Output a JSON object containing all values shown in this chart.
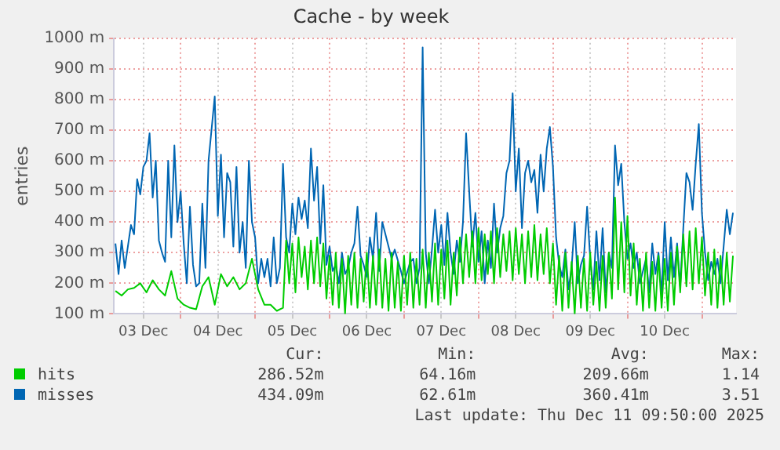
{
  "chart_data": {
    "type": "line",
    "title": "Cache - by week",
    "ylabel": "entries",
    "xlim": [
      "2025-12-03T02:30",
      "2025-12-11T11:00"
    ],
    "xticks": [
      {
        "value": "2025-12-03T12:00",
        "label": "03 Dec"
      },
      {
        "value": "2025-12-04T00:00",
        "label": null
      },
      {
        "value": "2025-12-04T12:00",
        "label": "04 Dec"
      },
      {
        "value": "2025-12-05T00:00",
        "label": null
      },
      {
        "value": "2025-12-05T12:00",
        "label": "05 Dec"
      },
      {
        "value": "2025-12-06T00:00",
        "label": null
      },
      {
        "value": "2025-12-06T12:00",
        "label": "06 Dec"
      },
      {
        "value": "2025-12-07T00:00",
        "label": null
      },
      {
        "value": "2025-12-07T12:00",
        "label": "07 Dec"
      },
      {
        "value": "2025-12-08T00:00",
        "label": null
      },
      {
        "value": "2025-12-08T12:00",
        "label": "08 Dec"
      },
      {
        "value": "2025-12-09T00:00",
        "label": null
      },
      {
        "value": "2025-12-09T12:00",
        "label": "09 Dec"
      },
      {
        "value": "2025-12-10T00:00",
        "label": null
      },
      {
        "value": "2025-12-10T12:00",
        "label": "10 Dec"
      },
      {
        "value": "2025-12-11T00:00",
        "label": null
      }
    ],
    "ylim": [
      100,
      1000
    ],
    "yticks": [
      {
        "value": 100,
        "label": "100 m"
      },
      {
        "value": 200,
        "label": "200 m"
      },
      {
        "value": 300,
        "label": "300 m"
      },
      {
        "value": 400,
        "label": "400 m"
      },
      {
        "value": 500,
        "label": "500 m"
      },
      {
        "value": 600,
        "label": "600 m"
      },
      {
        "value": 700,
        "label": "700 m"
      },
      {
        "value": 800,
        "label": "800 m"
      },
      {
        "value": 900,
        "label": "900 m"
      },
      {
        "value": 1000,
        "label": "1000 m"
      }
    ],
    "grid": true,
    "legend": "bottom",
    "line_style": "solid",
    "annotations": [
      "Cur:",
      "Min:",
      "Avg:",
      "Max:",
      "286.52m",
      "64.16m",
      "209.66m",
      "1.14",
      "434.09m",
      "62.61m",
      "360.41m",
      "3.51",
      "Last update: Thu Dec 11 09:50:00 2025"
    ],
    "series": [
      {
        "name": "hits",
        "color": "#00cc00",
        "x": [
          "2025-12-03T03:00",
          "2025-12-03T05:00",
          "2025-12-03T07:00",
          "2025-12-03T09:00",
          "2025-12-03T11:00",
          "2025-12-03T13:00",
          "2025-12-03T15:00",
          "2025-12-03T17:00",
          "2025-12-03T19:00",
          "2025-12-03T21:00",
          "2025-12-03T23:00",
          "2025-12-04T01:00",
          "2025-12-04T03:00",
          "2025-12-04T05:00",
          "2025-12-04T07:00",
          "2025-12-04T09:00",
          "2025-12-04T11:00",
          "2025-12-04T13:00",
          "2025-12-04T15:00",
          "2025-12-04T17:00",
          "2025-12-04T19:00",
          "2025-12-04T21:00",
          "2025-12-04T23:00",
          "2025-12-05T01:00",
          "2025-12-05T03:00",
          "2025-12-05T05:00",
          "2025-12-05T07:00",
          "2025-12-05T09:00",
          "2025-12-05T10:00",
          "2025-12-05T11:00",
          "2025-12-05T12:00",
          "2025-12-05T13:00",
          "2025-12-05T14:00",
          "2025-12-05T15:00",
          "2025-12-05T16:00",
          "2025-12-05T17:00",
          "2025-12-05T18:00",
          "2025-12-05T19:00",
          "2025-12-05T20:00",
          "2025-12-05T21:00",
          "2025-12-05T22:00",
          "2025-12-05T23:00",
          "2025-12-06T00:00",
          "2025-12-06T01:00",
          "2025-12-06T02:00",
          "2025-12-06T03:00",
          "2025-12-06T04:00",
          "2025-12-06T05:00",
          "2025-12-06T06:00",
          "2025-12-06T07:00",
          "2025-12-06T08:00",
          "2025-12-06T09:00",
          "2025-12-06T10:00",
          "2025-12-06T11:00",
          "2025-12-06T12:00",
          "2025-12-06T13:00",
          "2025-12-06T14:00",
          "2025-12-06T15:00",
          "2025-12-06T16:00",
          "2025-12-06T17:00",
          "2025-12-06T18:00",
          "2025-12-06T19:00",
          "2025-12-06T20:00",
          "2025-12-06T21:00",
          "2025-12-06T22:00",
          "2025-12-06T23:00",
          "2025-12-07T00:00",
          "2025-12-07T01:00",
          "2025-12-07T02:00",
          "2025-12-07T03:00",
          "2025-12-07T04:00",
          "2025-12-07T05:00",
          "2025-12-07T06:00",
          "2025-12-07T07:00",
          "2025-12-07T08:00",
          "2025-12-07T09:00",
          "2025-12-07T10:00",
          "2025-12-07T11:00",
          "2025-12-07T12:00",
          "2025-12-07T13:00",
          "2025-12-07T14:00",
          "2025-12-07T15:00",
          "2025-12-07T16:00",
          "2025-12-07T17:00",
          "2025-12-07T18:00",
          "2025-12-07T19:00",
          "2025-12-07T20:00",
          "2025-12-07T21:00",
          "2025-12-07T22:00",
          "2025-12-07T23:00",
          "2025-12-08T00:00",
          "2025-12-08T01:00",
          "2025-12-08T02:00",
          "2025-12-08T03:00",
          "2025-12-08T04:00",
          "2025-12-08T05:00",
          "2025-12-08T06:00",
          "2025-12-08T07:00",
          "2025-12-08T08:00",
          "2025-12-08T09:00",
          "2025-12-08T10:00",
          "2025-12-08T11:00",
          "2025-12-08T12:00",
          "2025-12-08T13:00",
          "2025-12-08T14:00",
          "2025-12-08T15:00",
          "2025-12-08T16:00",
          "2025-12-08T17:00",
          "2025-12-08T18:00",
          "2025-12-08T19:00",
          "2025-12-08T20:00",
          "2025-12-08T21:00",
          "2025-12-08T22:00",
          "2025-12-08T23:00",
          "2025-12-09T00:00",
          "2025-12-09T01:00",
          "2025-12-09T02:00",
          "2025-12-09T03:00",
          "2025-12-09T04:00",
          "2025-12-09T05:00",
          "2025-12-09T06:00",
          "2025-12-09T07:00",
          "2025-12-09T08:00",
          "2025-12-09T09:00",
          "2025-12-09T10:00",
          "2025-12-09T11:00",
          "2025-12-09T12:00",
          "2025-12-09T13:00",
          "2025-12-09T14:00",
          "2025-12-09T15:00",
          "2025-12-09T16:00",
          "2025-12-09T17:00",
          "2025-12-09T18:00",
          "2025-12-09T19:00",
          "2025-12-09T20:00",
          "2025-12-09T21:00",
          "2025-12-09T22:00",
          "2025-12-09T23:00",
          "2025-12-10T00:00",
          "2025-12-10T01:00",
          "2025-12-10T02:00",
          "2025-12-10T03:00",
          "2025-12-10T04:00",
          "2025-12-10T05:00",
          "2025-12-10T06:00",
          "2025-12-10T07:00",
          "2025-12-10T08:00",
          "2025-12-10T09:00",
          "2025-12-10T10:00",
          "2025-12-10T11:00",
          "2025-12-10T12:00",
          "2025-12-10T13:00",
          "2025-12-10T14:00",
          "2025-12-10T15:00",
          "2025-12-10T16:00",
          "2025-12-10T17:00",
          "2025-12-10T18:00",
          "2025-12-10T19:00",
          "2025-12-10T20:00",
          "2025-12-10T21:00",
          "2025-12-10T22:00",
          "2025-12-10T23:00",
          "2025-12-11T00:00",
          "2025-12-11T01:00",
          "2025-12-11T02:00",
          "2025-12-11T03:00",
          "2025-12-11T04:00",
          "2025-12-11T05:00",
          "2025-12-11T06:00",
          "2025-12-11T07:00",
          "2025-12-11T08:00",
          "2025-12-11T09:00",
          "2025-12-11T10:00"
        ],
        "values": [
          175,
          160,
          180,
          185,
          200,
          170,
          210,
          180,
          160,
          240,
          150,
          130,
          120,
          115,
          190,
          220,
          130,
          230,
          190,
          220,
          180,
          200,
          280,
          180,
          130,
          130,
          110,
          120,
          340,
          200,
          330,
          170,
          350,
          220,
          320,
          180,
          340,
          200,
          350,
          190,
          330,
          150,
          290,
          130,
          300,
          120,
          280,
          100,
          290,
          130,
          300,
          120,
          280,
          140,
          300,
          120,
          290,
          130,
          310,
          120,
          280,
          110,
          300,
          120,
          270,
          110,
          290,
          130,
          300,
          120,
          280,
          130,
          310,
          120,
          300,
          140,
          330,
          130,
          310,
          150,
          340,
          130,
          300,
          160,
          350,
          200,
          360,
          220,
          370,
          200,
          380,
          210,
          360,
          230,
          370,
          200,
          380,
          220,
          360,
          240,
          370,
          210,
          380,
          230,
          360,
          200,
          370,
          220,
          390,
          210,
          360,
          230,
          380,
          200,
          330,
          130,
          290,
          110,
          300,
          120,
          270,
          100,
          290,
          120,
          280,
          110,
          300,
          130,
          270,
          110,
          290,
          120,
          300,
          150,
          480,
          180,
          400,
          170,
          420,
          160,
          330,
          130,
          280,
          110,
          300,
          120,
          270,
          110,
          290,
          120,
          280,
          110,
          300,
          130,
          320,
          170,
          360,
          190,
          370,
          180,
          380,
          200,
          350,
          160,
          300,
          130,
          310,
          120,
          290,
          130,
          300,
          140,
          290
        ]
      },
      {
        "name": "misses",
        "color": "#0066b3",
        "x": [
          "2025-12-03T03:00",
          "2025-12-03T04:00",
          "2025-12-03T05:00",
          "2025-12-03T06:00",
          "2025-12-03T08:00",
          "2025-12-03T09:00",
          "2025-12-03T10:00",
          "2025-12-03T11:00",
          "2025-12-03T12:00",
          "2025-12-03T13:00",
          "2025-12-03T14:00",
          "2025-12-03T15:00",
          "2025-12-03T16:00",
          "2025-12-03T17:00",
          "2025-12-03T18:00",
          "2025-12-03T19:00",
          "2025-12-03T20:00",
          "2025-12-03T21:00",
          "2025-12-03T22:00",
          "2025-12-03T23:00",
          "2025-12-04T00:00",
          "2025-12-04T01:00",
          "2025-12-04T02:00",
          "2025-12-04T03:00",
          "2025-12-04T04:00",
          "2025-12-04T05:00",
          "2025-12-04T06:00",
          "2025-12-04T07:00",
          "2025-12-04T08:00",
          "2025-12-04T09:00",
          "2025-12-04T11:00",
          "2025-12-04T12:00",
          "2025-12-04T13:00",
          "2025-12-04T14:00",
          "2025-12-04T15:00",
          "2025-12-04T16:00",
          "2025-12-04T17:00",
          "2025-12-04T18:00",
          "2025-12-04T19:00",
          "2025-12-04T20:00",
          "2025-12-04T21:00",
          "2025-12-04T22:00",
          "2025-12-04T23:00",
          "2025-12-05T00:00",
          "2025-12-05T01:00",
          "2025-12-05T02:00",
          "2025-12-05T03:00",
          "2025-12-05T04:00",
          "2025-12-05T05:00",
          "2025-12-05T06:00",
          "2025-12-05T07:00",
          "2025-12-05T08:00",
          "2025-12-05T09:00",
          "2025-12-05T10:00",
          "2025-12-05T11:00",
          "2025-12-05T12:00",
          "2025-12-05T13:00",
          "2025-12-05T14:00",
          "2025-12-05T15:00",
          "2025-12-05T16:00",
          "2025-12-05T17:00",
          "2025-12-05T18:00",
          "2025-12-05T19:00",
          "2025-12-05T20:00",
          "2025-12-05T21:00",
          "2025-12-05T22:00",
          "2025-12-05T23:00",
          "2025-12-06T00:00",
          "2025-12-06T01:00",
          "2025-12-06T02:00",
          "2025-12-06T03:00",
          "2025-12-06T04:00",
          "2025-12-06T05:00",
          "2025-12-06T06:00",
          "2025-12-06T07:00",
          "2025-12-06T08:00",
          "2025-12-06T09:00",
          "2025-12-06T10:00",
          "2025-12-06T11:00",
          "2025-12-06T12:00",
          "2025-12-06T13:00",
          "2025-12-06T14:00",
          "2025-12-06T15:00",
          "2025-12-06T16:00",
          "2025-12-06T17:00",
          "2025-12-06T18:00",
          "2025-12-06T20:00",
          "2025-12-06T21:00",
          "2025-12-06T23:00",
          "2025-12-07T00:00",
          "2025-12-07T02:00",
          "2025-12-07T03:00",
          "2025-12-07T04:00",
          "2025-12-07T05:00",
          "2025-12-07T06:00",
          "2025-12-07T07:00",
          "2025-12-07T08:00",
          "2025-12-07T09:00",
          "2025-12-07T10:00",
          "2025-12-07T11:00",
          "2025-12-07T12:00",
          "2025-12-07T13:00",
          "2025-12-07T14:00",
          "2025-12-07T15:00",
          "2025-12-07T16:00",
          "2025-12-07T17:00",
          "2025-12-07T18:00",
          "2025-12-07T19:00",
          "2025-12-07T20:00",
          "2025-12-07T21:00",
          "2025-12-07T22:00",
          "2025-12-07T23:00",
          "2025-12-08T00:00",
          "2025-12-08T01:00",
          "2025-12-08T02:00",
          "2025-12-08T03:00",
          "2025-12-08T04:00",
          "2025-12-08T05:00",
          "2025-12-08T06:00",
          "2025-12-08T07:00",
          "2025-12-08T08:00",
          "2025-12-08T09:00",
          "2025-12-08T10:00",
          "2025-12-08T11:00",
          "2025-12-08T12:00",
          "2025-12-08T13:00",
          "2025-12-08T14:00",
          "2025-12-08T15:00",
          "2025-12-08T16:00",
          "2025-12-08T17:00",
          "2025-12-08T18:00",
          "2025-12-08T19:00",
          "2025-12-08T20:00",
          "2025-12-08T21:00",
          "2025-12-08T22:00",
          "2025-12-08T23:00",
          "2025-12-09T00:00",
          "2025-12-09T01:00",
          "2025-12-09T02:00",
          "2025-12-09T03:00",
          "2025-12-09T04:00",
          "2025-12-09T05:00",
          "2025-12-09T06:00",
          "2025-12-09T07:00",
          "2025-12-09T08:00",
          "2025-12-09T09:00",
          "2025-12-09T10:00",
          "2025-12-09T11:00",
          "2025-12-09T12:00",
          "2025-12-09T13:00",
          "2025-12-09T14:00",
          "2025-12-09T15:00",
          "2025-12-09T16:00",
          "2025-12-09T17:00",
          "2025-12-09T18:00",
          "2025-12-09T19:00",
          "2025-12-09T20:00",
          "2025-12-09T21:00",
          "2025-12-09T22:00",
          "2025-12-09T23:00",
          "2025-12-10T00:00",
          "2025-12-10T01:00",
          "2025-12-10T02:00",
          "2025-12-10T03:00",
          "2025-12-10T04:00",
          "2025-12-10T05:00",
          "2025-12-10T06:00",
          "2025-12-10T07:00",
          "2025-12-10T08:00",
          "2025-12-10T09:00",
          "2025-12-10T10:00",
          "2025-12-10T11:00",
          "2025-12-10T12:00",
          "2025-12-10T13:00",
          "2025-12-10T14:00",
          "2025-12-10T15:00",
          "2025-12-10T16:00",
          "2025-12-10T17:00",
          "2025-12-10T18:00",
          "2025-12-10T19:00",
          "2025-12-10T20:00",
          "2025-12-10T21:00",
          "2025-12-10T22:00",
          "2025-12-10T23:00",
          "2025-12-11T00:00",
          "2025-12-11T01:00",
          "2025-12-11T02:00",
          "2025-12-11T03:00",
          "2025-12-11T04:00",
          "2025-12-11T05:00",
          "2025-12-11T06:00",
          "2025-12-11T07:00",
          "2025-12-11T08:00",
          "2025-12-11T09:00",
          "2025-12-11T10:00"
        ],
        "values": [
          330,
          230,
          340,
          250,
          390,
          360,
          540,
          490,
          580,
          600,
          690,
          480,
          600,
          340,
          300,
          270,
          600,
          350,
          650,
          400,
          500,
          330,
          200,
          450,
          260,
          190,
          200,
          460,
          250,
          600,
          810,
          420,
          620,
          350,
          560,
          530,
          320,
          580,
          300,
          400,
          250,
          600,
          400,
          350,
          200,
          280,
          220,
          280,
          190,
          350,
          200,
          250,
          590,
          350,
          300,
          460,
          360,
          480,
          410,
          470,
          380,
          640,
          470,
          580,
          330,
          520,
          260,
          320,
          240,
          260,
          200,
          300,
          230,
          250,
          300,
          330,
          450,
          290,
          260,
          220,
          350,
          280,
          430,
          240,
          400,
          360,
          280,
          310,
          240,
          200,
          270,
          280,
          200,
          250,
          970,
          300,
          200,
          310,
          440,
          300,
          390,
          260,
          430,
          300,
          230,
          340,
          270,
          400,
          690,
          500,
          320,
          430,
          270,
          370,
          200,
          340,
          250,
          460,
          300,
          380,
          420,
          560,
          600,
          820,
          500,
          640,
          380,
          560,
          600,
          530,
          570,
          430,
          620,
          500,
          640,
          710,
          580,
          350,
          260,
          220,
          310,
          180,
          250,
          400,
          200,
          260,
          290,
          450,
          280,
          180,
          370,
          210,
          380,
          170,
          300,
          250,
          650,
          520,
          590,
          400,
          280,
          330,
          250,
          300,
          200,
          240,
          280,
          170,
          330,
          230,
          300,
          160,
          400,
          210,
          350,
          220,
          330,
          190,
          380,
          560,
          530,
          440,
          590,
          720,
          430,
          300,
          210,
          270,
          230,
          280,
          200,
          320,
          440,
          360,
          430
        ]
      }
    ]
  }
}
